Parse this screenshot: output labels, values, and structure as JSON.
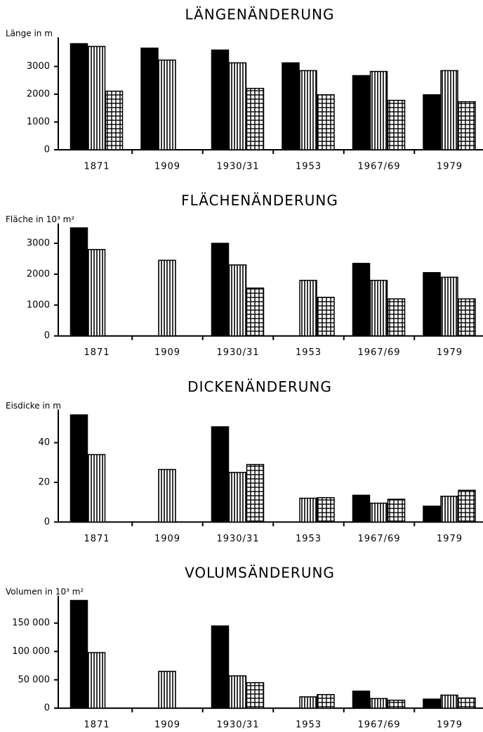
{
  "chart_data": [
    {
      "type": "bar",
      "title": "LÄNGENÄNDERUNG",
      "y_label": "Länge in m",
      "categories": [
        "1871",
        "1909",
        "1930/31",
        "1953",
        "1967/69",
        "1979"
      ],
      "series": [
        {
          "color": "#000000",
          "pattern": "solid",
          "values": [
            3820,
            3660,
            3590,
            3130,
            2670,
            1980
          ]
        },
        {
          "color": "#000000",
          "pattern": "vertical-stripes",
          "values": [
            3720,
            3230,
            3130,
            2850,
            2820,
            2850
          ]
        },
        {
          "color": "#000000",
          "pattern": "grid",
          "values": [
            2110,
            null,
            2210,
            1980,
            1780,
            1730
          ]
        }
      ],
      "ylim": [
        0,
        4000
      ],
      "yticks": [
        0,
        1000,
        2000,
        3000
      ]
    },
    {
      "type": "bar",
      "title": "FLÄCHENÄNDERUNG",
      "y_label": "Fläche in 10³ m²",
      "categories": [
        "1871",
        "1909",
        "1930/31",
        "1953",
        "1967/69",
        "1979"
      ],
      "series": [
        {
          "color": "#000000",
          "pattern": "solid",
          "values": [
            3500,
            null,
            3000,
            null,
            2350,
            2050
          ]
        },
        {
          "color": "#000000",
          "pattern": "vertical-stripes",
          "values": [
            2800,
            2450,
            2300,
            1800,
            1800,
            1900
          ]
        },
        {
          "color": "#000000",
          "pattern": "grid",
          "values": [
            null,
            null,
            1550,
            1250,
            1200,
            1200
          ]
        }
      ],
      "ylim": [
        0,
        3600
      ],
      "yticks": [
        0,
        1000,
        2000,
        3000
      ]
    },
    {
      "type": "bar",
      "title": "DICKENÄNDERUNG",
      "y_label": "Eisdicke in m",
      "categories": [
        "1871",
        "1909",
        "1930/31",
        "1953",
        "1967/69",
        "1979"
      ],
      "series": [
        {
          "color": "#000000",
          "pattern": "solid",
          "values": [
            54,
            null,
            48,
            null,
            13.5,
            8
          ]
        },
        {
          "color": "#000000",
          "pattern": "vertical-stripes",
          "values": [
            34,
            26.5,
            25,
            12,
            9.5,
            13
          ]
        },
        {
          "color": "#000000",
          "pattern": "grid",
          "values": [
            null,
            null,
            29,
            12.3,
            11.5,
            16
          ]
        }
      ],
      "ylim": [
        0,
        56
      ],
      "yticks": [
        0,
        20,
        40
      ]
    },
    {
      "type": "bar",
      "title": "VOLUMSÄNDERUNG",
      "y_label": "Volumen in 10³ m²",
      "categories": [
        "1871",
        "1909",
        "1930/31",
        "1953",
        "1967/69",
        "1979"
      ],
      "series": [
        {
          "color": "#000000",
          "pattern": "solid",
          "values": [
            190000,
            null,
            145000,
            null,
            30000,
            16000
          ]
        },
        {
          "color": "#000000",
          "pattern": "vertical-stripes",
          "values": [
            98000,
            65000,
            57000,
            20000,
            17000,
            23000
          ]
        },
        {
          "color": "#000000",
          "pattern": "grid",
          "values": [
            null,
            null,
            45000,
            24000,
            14000,
            18000
          ]
        }
      ],
      "ylim": [
        0,
        196000
      ],
      "yticks": [
        0,
        {
          "value": 50000,
          "label": "50 000"
        },
        {
          "value": 100000,
          "label": "100 000"
        },
        {
          "value": 150000,
          "label": "150 000"
        }
      ]
    }
  ]
}
